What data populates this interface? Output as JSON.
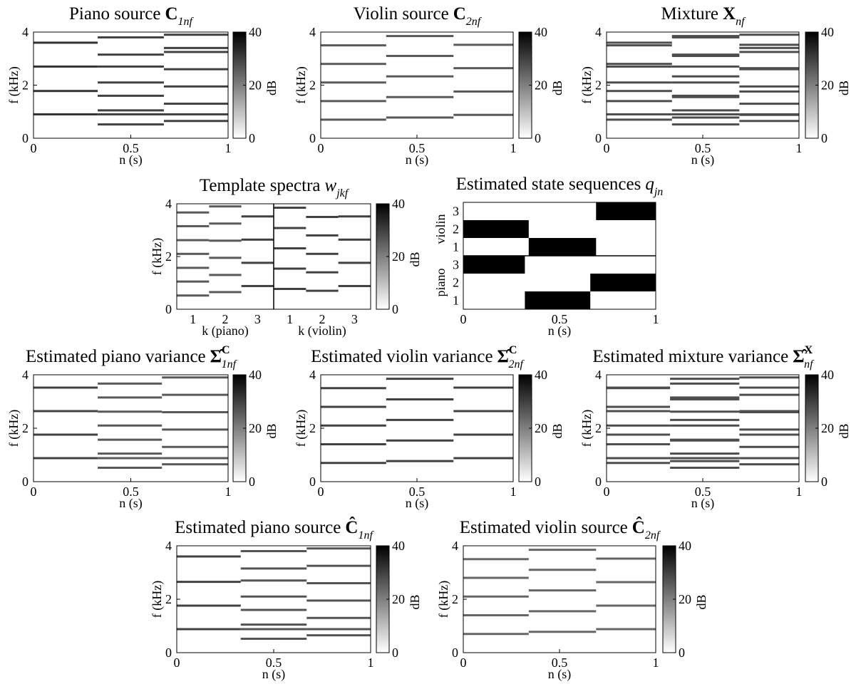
{
  "chart_data": [
    {
      "type": "spectrogram",
      "title": "Piano source",
      "symbol": "C",
      "symbol_style": "bold",
      "subscript": "1nf",
      "xlabel": "n (s)",
      "ylabel": "f (kHz)",
      "xlim": [
        0,
        1
      ],
      "ylim": [
        0,
        4
      ],
      "xticks": [
        0,
        0.5,
        1
      ],
      "yticks": [
        0,
        2,
        4
      ],
      "clim": [
        0,
        40
      ],
      "cticks": [
        0,
        20,
        40
      ],
      "colorbar_label": "dB",
      "segments": [
        {
          "start": 0,
          "end": 0.33,
          "db": 32,
          "lines": [
            0.9,
            1.78,
            2.7,
            3.6
          ]
        },
        {
          "start": 0.33,
          "end": 0.67,
          "db": 30,
          "lines": [
            0.52,
            0.9,
            1.05,
            1.6,
            2.1,
            2.7,
            3.15,
            3.8
          ]
        },
        {
          "start": 0.67,
          "end": 1,
          "db": 30,
          "lines": [
            0.65,
            0.9,
            1.3,
            1.95,
            2.6,
            3.25,
            3.4,
            3.9
          ]
        }
      ]
    },
    {
      "type": "spectrogram",
      "title": "Violin source",
      "symbol": "C",
      "symbol_style": "bold",
      "subscript": "2nf",
      "xlabel": "n (s)",
      "ylabel": "f (kHz)",
      "xlim": [
        0,
        1
      ],
      "ylim": [
        0,
        4
      ],
      "xticks": [
        0,
        0.5,
        1
      ],
      "yticks": [
        0,
        2,
        4
      ],
      "clim": [
        0,
        40
      ],
      "cticks": [
        0,
        20,
        40
      ],
      "colorbar_label": "dB",
      "segments": [
        {
          "start": 0,
          "end": 0.34,
          "db": 26,
          "lines": [
            0.7,
            1.4,
            2.1,
            2.8,
            3.5
          ]
        },
        {
          "start": 0.34,
          "end": 0.69,
          "db": 26,
          "lines": [
            0.78,
            1.55,
            2.33,
            3.1,
            3.85
          ]
        },
        {
          "start": 0.69,
          "end": 1,
          "db": 26,
          "lines": [
            0.88,
            1.76,
            2.64,
            3.52
          ]
        }
      ]
    },
    {
      "type": "spectrogram",
      "title": "Mixture",
      "symbol": "X",
      "symbol_style": "bold",
      "subscript": "nf",
      "xlabel": "n (s)",
      "ylabel": "f (kHz)",
      "xlim": [
        0,
        1
      ],
      "ylim": [
        0,
        4
      ],
      "xticks": [
        0,
        0.5,
        1
      ],
      "yticks": [
        0,
        2,
        4
      ],
      "clim": [
        0,
        40
      ],
      "cticks": [
        0,
        20,
        40
      ],
      "colorbar_label": "dB",
      "segments": [
        {
          "start": 0,
          "end": 0.34,
          "db": 28,
          "lines": [
            0.7,
            0.9,
            1.4,
            1.78,
            2.1,
            2.7,
            2.8,
            3.5,
            3.6
          ]
        },
        {
          "start": 0.34,
          "end": 0.69,
          "db": 28,
          "lines": [
            0.52,
            0.78,
            0.9,
            1.05,
            1.55,
            1.6,
            2.1,
            2.33,
            2.7,
            3.1,
            3.15,
            3.8,
            3.85
          ]
        },
        {
          "start": 0.69,
          "end": 1,
          "db": 28,
          "lines": [
            0.65,
            0.88,
            0.9,
            1.3,
            1.76,
            1.95,
            2.6,
            2.64,
            3.25,
            3.4,
            3.52,
            3.9
          ]
        }
      ]
    },
    {
      "type": "templates",
      "title": "Template spectra",
      "symbol": "w",
      "symbol_style": "italic",
      "subscript": "jkf",
      "ylabel": "f (kHz)",
      "ylim": [
        0,
        4
      ],
      "yticks": [
        0,
        2,
        4
      ],
      "clim": [
        0,
        40
      ],
      "cticks": [
        0,
        20,
        40
      ],
      "colorbar_label": "dB",
      "groups": [
        {
          "name": "k (piano)",
          "categories": [
            "1",
            "2",
            "3"
          ],
          "templates": [
            {
              "db": 26,
              "lines": [
                0.52,
                1.05,
                1.57,
                2.1,
                2.62,
                3.15,
                3.67
              ]
            },
            {
              "db": 26,
              "lines": [
                0.65,
                1.3,
                1.95,
                2.6,
                3.25,
                3.9
              ]
            },
            {
              "db": 30,
              "lines": [
                0.88,
                1.76,
                2.64,
                3.52
              ]
            }
          ]
        },
        {
          "name": "k (violin)",
          "categories": [
            "1",
            "2",
            "3"
          ],
          "templates": [
            {
              "db": 30,
              "lines": [
                0.77,
                1.54,
                2.31,
                3.08,
                3.85
              ]
            },
            {
              "db": 30,
              "lines": [
                0.7,
                1.4,
                2.1,
                2.8,
                3.5
              ]
            },
            {
              "db": 30,
              "lines": [
                0.88,
                1.76,
                2.64,
                3.52
              ]
            }
          ]
        }
      ]
    },
    {
      "type": "states",
      "title": "Estimated state sequences",
      "symbol": "q",
      "symbol_style": "italic",
      "subscript": "jn",
      "xlabel": "n (s)",
      "xlim": [
        0,
        1
      ],
      "xticks": [
        0,
        0.5,
        1
      ],
      "groups": [
        {
          "name": "piano",
          "states": [
            "1",
            "2",
            "3"
          ],
          "segments": [
            {
              "start": 0,
              "end": 0.32,
              "state": 3
            },
            {
              "start": 0.32,
              "end": 0.66,
              "state": 1
            },
            {
              "start": 0.66,
              "end": 1,
              "state": 2
            }
          ]
        },
        {
          "name": "violin",
          "states": [
            "1",
            "2",
            "3"
          ],
          "segments": [
            {
              "start": 0,
              "end": 0.34,
              "state": 2
            },
            {
              "start": 0.34,
              "end": 0.69,
              "state": 1
            },
            {
              "start": 0.69,
              "end": 1,
              "state": 3
            }
          ]
        }
      ]
    },
    {
      "type": "spectrogram",
      "title": "Estimated piano variance",
      "symbol": "Σ̂",
      "symbol_style": "bold",
      "superscript": "C",
      "subscript": "1nf",
      "xlabel": "n (s)",
      "ylabel": "f (kHz)",
      "xlim": [
        0,
        1
      ],
      "ylim": [
        0,
        4
      ],
      "xticks": [
        0,
        0.5,
        1
      ],
      "yticks": [
        0,
        2,
        4
      ],
      "clim": [
        0,
        40
      ],
      "cticks": [
        0,
        20,
        40
      ],
      "colorbar_label": "dB",
      "segments": [
        {
          "start": 0,
          "end": 0.33,
          "db": 30,
          "lines": [
            0.88,
            1.76,
            2.64,
            3.52
          ]
        },
        {
          "start": 0.33,
          "end": 0.66,
          "db": 26,
          "lines": [
            0.52,
            0.88,
            1.05,
            1.57,
            2.1,
            2.62,
            3.15,
            3.67
          ]
        },
        {
          "start": 0.66,
          "end": 1,
          "db": 26,
          "lines": [
            0.65,
            0.88,
            1.3,
            1.95,
            2.6,
            3.25,
            3.9
          ]
        }
      ]
    },
    {
      "type": "spectrogram",
      "title": "Estimated violin variance",
      "symbol": "Σ̂",
      "symbol_style": "bold",
      "superscript": "C",
      "subscript": "2nf",
      "xlabel": "n (s)",
      "ylabel": "f (kHz)",
      "xlim": [
        0,
        1
      ],
      "ylim": [
        0,
        4
      ],
      "xticks": [
        0,
        0.5,
        1
      ],
      "yticks": [
        0,
        2,
        4
      ],
      "clim": [
        0,
        40
      ],
      "cticks": [
        0,
        20,
        40
      ],
      "colorbar_label": "dB",
      "segments": [
        {
          "start": 0,
          "end": 0.34,
          "db": 30,
          "lines": [
            0.7,
            1.4,
            2.1,
            2.8,
            3.5
          ]
        },
        {
          "start": 0.34,
          "end": 0.69,
          "db": 30,
          "lines": [
            0.77,
            1.54,
            2.31,
            3.08,
            3.85
          ]
        },
        {
          "start": 0.69,
          "end": 1,
          "db": 30,
          "lines": [
            0.88,
            1.76,
            2.64,
            3.52
          ]
        }
      ]
    },
    {
      "type": "spectrogram",
      "title": "Estimated mixture variance",
      "symbol": "Σ̂",
      "symbol_style": "bold",
      "superscript": "X",
      "subscript": "nf",
      "xlabel": "n (s)",
      "ylabel": "f (kHz)",
      "xlim": [
        0,
        1
      ],
      "ylim": [
        0,
        4
      ],
      "xticks": [
        0,
        0.5,
        1
      ],
      "yticks": [
        0,
        2,
        4
      ],
      "clim": [
        0,
        40
      ],
      "cticks": [
        0,
        20,
        40
      ],
      "colorbar_label": "dB",
      "segments": [
        {
          "start": 0,
          "end": 0.33,
          "db": 28,
          "lines": [
            0.7,
            0.88,
            1.4,
            1.76,
            2.1,
            2.64,
            2.8,
            3.5,
            3.52
          ]
        },
        {
          "start": 0.33,
          "end": 0.69,
          "db": 28,
          "lines": [
            0.52,
            0.77,
            0.88,
            1.05,
            1.54,
            1.57,
            2.1,
            2.31,
            2.62,
            3.08,
            3.15,
            3.67,
            3.85
          ]
        },
        {
          "start": 0.69,
          "end": 1,
          "db": 28,
          "lines": [
            0.65,
            0.88,
            1.3,
            1.76,
            1.95,
            2.6,
            2.64,
            3.25,
            3.52,
            3.9
          ]
        }
      ]
    },
    {
      "type": "spectrogram",
      "title": "Estimated piano source",
      "symbol": "Ĉ",
      "symbol_style": "bold",
      "subscript": "1nf",
      "xlabel": "n (s)",
      "ylabel": "f (kHz)",
      "xlim": [
        0,
        1
      ],
      "ylim": [
        0,
        4
      ],
      "xticks": [
        0,
        0.5,
        1
      ],
      "yticks": [
        0,
        2,
        4
      ],
      "clim": [
        0,
        40
      ],
      "cticks": [
        0,
        20,
        40
      ],
      "colorbar_label": "dB",
      "segments": [
        {
          "start": 0,
          "end": 0.33,
          "db": 30,
          "lines": [
            0.88,
            1.76,
            2.65,
            3.6
          ]
        },
        {
          "start": 0.33,
          "end": 0.67,
          "db": 27,
          "lines": [
            0.52,
            0.88,
            1.05,
            1.6,
            2.1,
            2.7,
            3.15,
            3.8
          ]
        },
        {
          "start": 0.67,
          "end": 1,
          "db": 27,
          "lines": [
            0.65,
            0.88,
            1.3,
            1.95,
            2.6,
            3.25,
            3.9
          ]
        }
      ]
    },
    {
      "type": "spectrogram",
      "title": "Estimated violin source",
      "symbol": "Ĉ",
      "symbol_style": "bold",
      "subscript": "2nf",
      "xlabel": "n (s)",
      "ylabel": "f (kHz)",
      "xlim": [
        0,
        1
      ],
      "ylim": [
        0,
        4
      ],
      "xticks": [
        0,
        0.5,
        1
      ],
      "yticks": [
        0,
        2,
        4
      ],
      "clim": [
        0,
        40
      ],
      "cticks": [
        0,
        20,
        40
      ],
      "colorbar_label": "dB",
      "segments": [
        {
          "start": 0,
          "end": 0.34,
          "db": 24,
          "lines": [
            0.7,
            1.4,
            2.1,
            2.8,
            3.5
          ]
        },
        {
          "start": 0.34,
          "end": 0.69,
          "db": 24,
          "lines": [
            0.78,
            1.55,
            2.33,
            3.1,
            3.85
          ]
        },
        {
          "start": 0.69,
          "end": 1,
          "db": 24,
          "lines": [
            0.88,
            1.76,
            2.64,
            3.52
          ]
        }
      ]
    }
  ]
}
